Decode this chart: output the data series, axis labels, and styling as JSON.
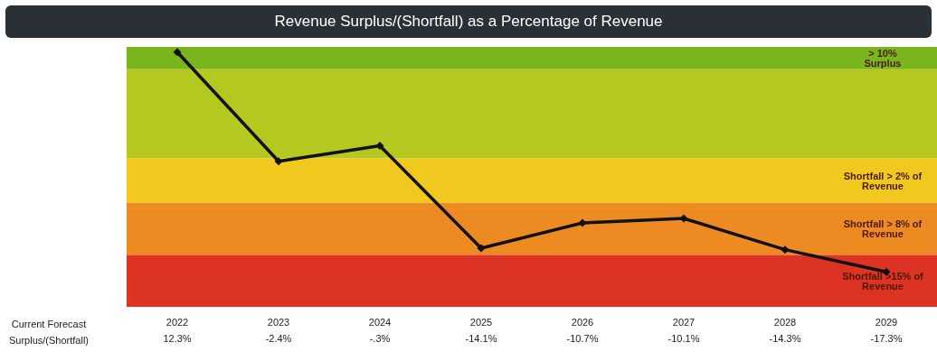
{
  "chart_data": {
    "type": "line",
    "title": "Revenue Surplus/(Shortfall) as a Percentage of Revenue",
    "xlabel": "Current Forecast\nSurplus/(Shortfall)",
    "categories": [
      "2022",
      "2023",
      "2024",
      "2025",
      "2026",
      "2027",
      "2028",
      "2029"
    ],
    "series": [
      {
        "color": "#111111",
        "values": [
          12.3,
          -2.4,
          -0.3,
          -14.1,
          -10.7,
          -10.1,
          -14.3,
          -17.3
        ],
        "value_labels": [
          "12.3%",
          "-2.4%",
          "-.3%",
          "-14.1%",
          "-10.7%",
          "-10.1%",
          "-14.3%",
          "-17.3%"
        ]
      }
    ],
    "bands": [
      {
        "axis": "y",
        "from": 10,
        "to": 13,
        "label": "> 10%\nSurplus",
        "color": "#7ab51d"
      },
      {
        "axis": "y",
        "from": -2,
        "to": 10,
        "color": "#b5c820"
      },
      {
        "axis": "y",
        "from": -8,
        "to": -2,
        "label": "Shortfall > 2% of\nRevenue",
        "color": "#f0c81e"
      },
      {
        "axis": "y",
        "from": -15,
        "to": -8,
        "label": "Shortfall > 8% of\nRevenue",
        "color": "#ee8a22"
      },
      {
        "axis": "y",
        "from": -22,
        "to": -15,
        "label": "Shortfall >15% of\nRevenue",
        "color": "#dc3324"
      }
    ],
    "marker": "diamond",
    "line_style": "solid"
  }
}
